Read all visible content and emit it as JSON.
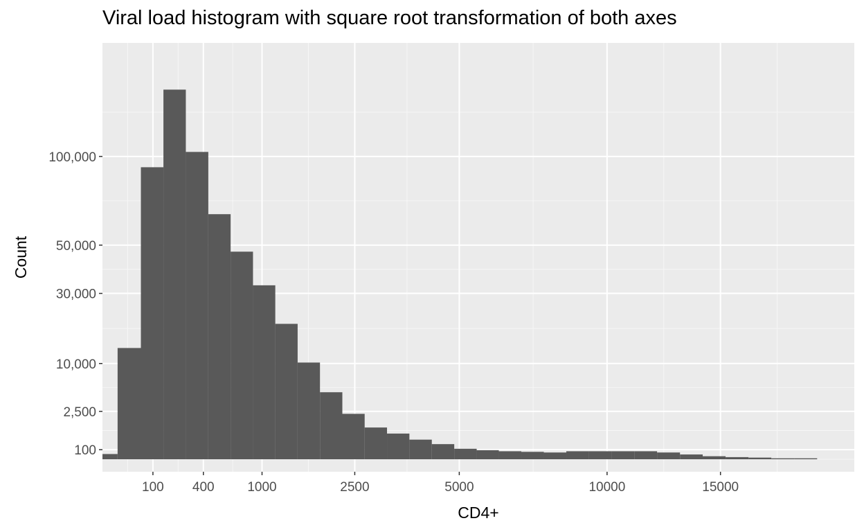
{
  "title": "Viral load histogram with square root transformation of both axes",
  "chart_data": {
    "type": "bar",
    "title": "Viral load histogram with square root transformation of both axes",
    "xlabel": "CD4+",
    "ylabel": "Count",
    "x_scale": "sqrt",
    "y_scale": "sqrt",
    "grid": true,
    "xlim": [
      0,
      22200
    ],
    "ylim": [
      0,
      189000
    ],
    "x_ticks": [
      100,
      400,
      1000,
      2500,
      5000,
      10000,
      15000
    ],
    "x_tick_labels": [
      "100",
      "400",
      "1000",
      "2500",
      "5000",
      "10000",
      "15000"
    ],
    "y_ticks": [
      100,
      2500,
      10000,
      30000,
      50000,
      100000
    ],
    "y_tick_labels": [
      "100",
      "2,500",
      "10,000",
      "30,000",
      "50,000",
      "100,000"
    ],
    "bars": [
      {
        "x0": 0,
        "x1": 9,
        "count": 30
      },
      {
        "x0": 9,
        "x1": 58,
        "count": 13500
      },
      {
        "x0": 58,
        "x1": 146,
        "count": 93000
      },
      {
        "x0": 146,
        "x1": 273,
        "count": 149000
      },
      {
        "x0": 273,
        "x1": 440,
        "count": 103000
      },
      {
        "x0": 440,
        "x1": 645,
        "count": 65500
      },
      {
        "x0": 645,
        "x1": 890,
        "count": 47000
      },
      {
        "x0": 890,
        "x1": 1173,
        "count": 33000
      },
      {
        "x0": 1173,
        "x1": 1496,
        "count": 20000
      },
      {
        "x0": 1496,
        "x1": 1858,
        "count": 10200
      },
      {
        "x0": 1858,
        "x1": 2260,
        "count": 4900
      },
      {
        "x0": 2260,
        "x1": 2700,
        "count": 2250
      },
      {
        "x0": 2700,
        "x1": 3180,
        "count": 1100
      },
      {
        "x0": 3180,
        "x1": 3700,
        "count": 720
      },
      {
        "x0": 3700,
        "x1": 4260,
        "count": 420
      },
      {
        "x0": 4260,
        "x1": 4860,
        "count": 250
      },
      {
        "x0": 4860,
        "x1": 5500,
        "count": 120
      },
      {
        "x0": 5500,
        "x1": 6170,
        "count": 90
      },
      {
        "x0": 6170,
        "x1": 6890,
        "count": 70
      },
      {
        "x0": 6890,
        "x1": 7650,
        "count": 60
      },
      {
        "x0": 7650,
        "x1": 8450,
        "count": 50
      },
      {
        "x0": 8450,
        "x1": 9300,
        "count": 70
      },
      {
        "x0": 9300,
        "x1": 10180,
        "count": 70
      },
      {
        "x0": 10180,
        "x1": 11110,
        "count": 70
      },
      {
        "x0": 11110,
        "x1": 12080,
        "count": 70
      },
      {
        "x0": 12080,
        "x1": 13100,
        "count": 50
      },
      {
        "x0": 13100,
        "x1": 14150,
        "count": 25
      },
      {
        "x0": 14150,
        "x1": 15250,
        "count": 10
      },
      {
        "x0": 15250,
        "x1": 16390,
        "count": 5
      },
      {
        "x0": 16390,
        "x1": 17570,
        "count": 3
      },
      {
        "x0": 17570,
        "x1": 18800,
        "count": 1
      },
      {
        "x0": 18800,
        "x1": 20060,
        "count": 1
      }
    ],
    "colors": {
      "panel_background": "#ebebeb",
      "grid_major": "#ffffff",
      "grid_minor": "#f6f6f6",
      "bar_fill": "#595959",
      "tick_label": "#4d4d4d",
      "tick_mark": "#333333"
    }
  }
}
